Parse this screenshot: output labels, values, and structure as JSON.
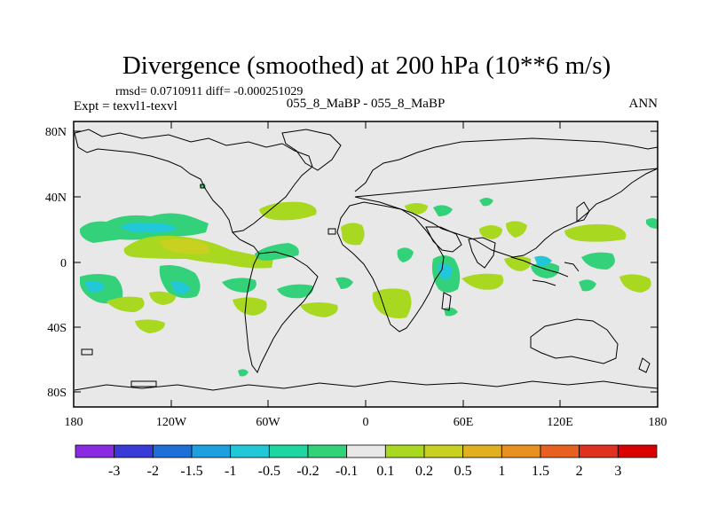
{
  "title": "Divergence (smoothed) at 200 hPa (10**6 m/s)",
  "stats": "rmsd= 0.0710911 diff= -0.000251029",
  "experiment": "Expt = texvl1-texvl",
  "case": "055_8_MaBP - 055_8_MaBP",
  "season": "ANN",
  "map": {
    "lat_ticks": [
      "80N",
      "40N",
      "0",
      "40S",
      "80S"
    ],
    "lon_ticks": [
      "180",
      "120W",
      "60W",
      "0",
      "60E",
      "120E",
      "180"
    ],
    "background_color": "#e8e8e8"
  },
  "colorbar": {
    "colors": [
      "#8a2be2",
      "#3a3ad6",
      "#1e6fd8",
      "#1ea0e0",
      "#22c8d8",
      "#1ed6a0",
      "#33d27a",
      "#e8e8e8",
      "#a8d820",
      "#c8d020",
      "#e0b020",
      "#e89020",
      "#e86020",
      "#e03020",
      "#d80000"
    ],
    "labels": [
      "-3",
      "-2",
      "-1.5",
      "-1",
      "-0.5",
      "-0.2",
      "-0.1",
      "0.1",
      "0.2",
      "0.5",
      "1",
      "1.5",
      "2",
      "3"
    ]
  },
  "field": {
    "colors": {
      "neg_weak": "#33d27a",
      "neg_mid": "#22c8d8",
      "neg_strong": "#1ea0e0",
      "pos_weak": "#a8d820",
      "pos_mid": "#c8d020",
      "pos_strong": "#e0b020"
    }
  }
}
